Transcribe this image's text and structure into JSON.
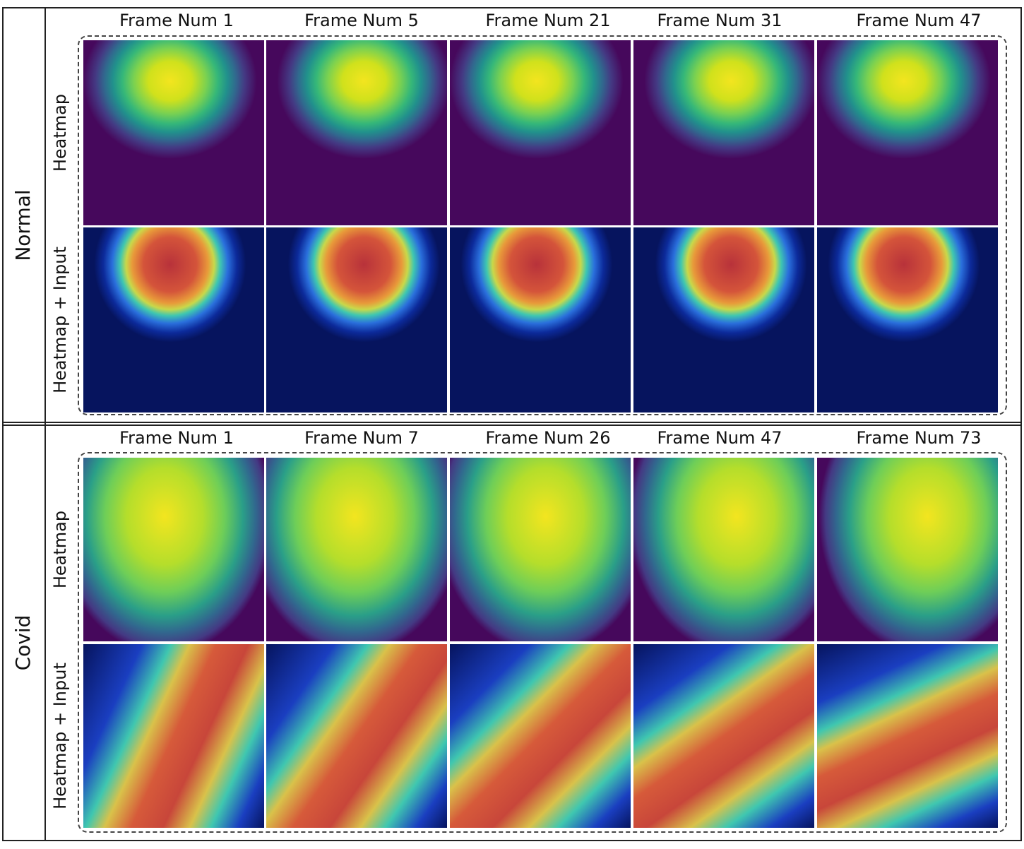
{
  "sections": [
    {
      "label": "Normal",
      "columns": [
        "Frame Num 1",
        "Frame Num 5",
        "Frame Num 21",
        "Frame Num 31",
        "Frame Num 47"
      ],
      "rows": [
        "Heatmap",
        "Heatmap + Input"
      ]
    },
    {
      "label": "Covid",
      "columns": [
        "Frame Num 1",
        "Frame Num 7",
        "Frame Num 26",
        "Frame Num 47",
        "Frame Num 73"
      ],
      "rows": [
        "Heatmap",
        "Heatmap + Input"
      ]
    }
  ]
}
